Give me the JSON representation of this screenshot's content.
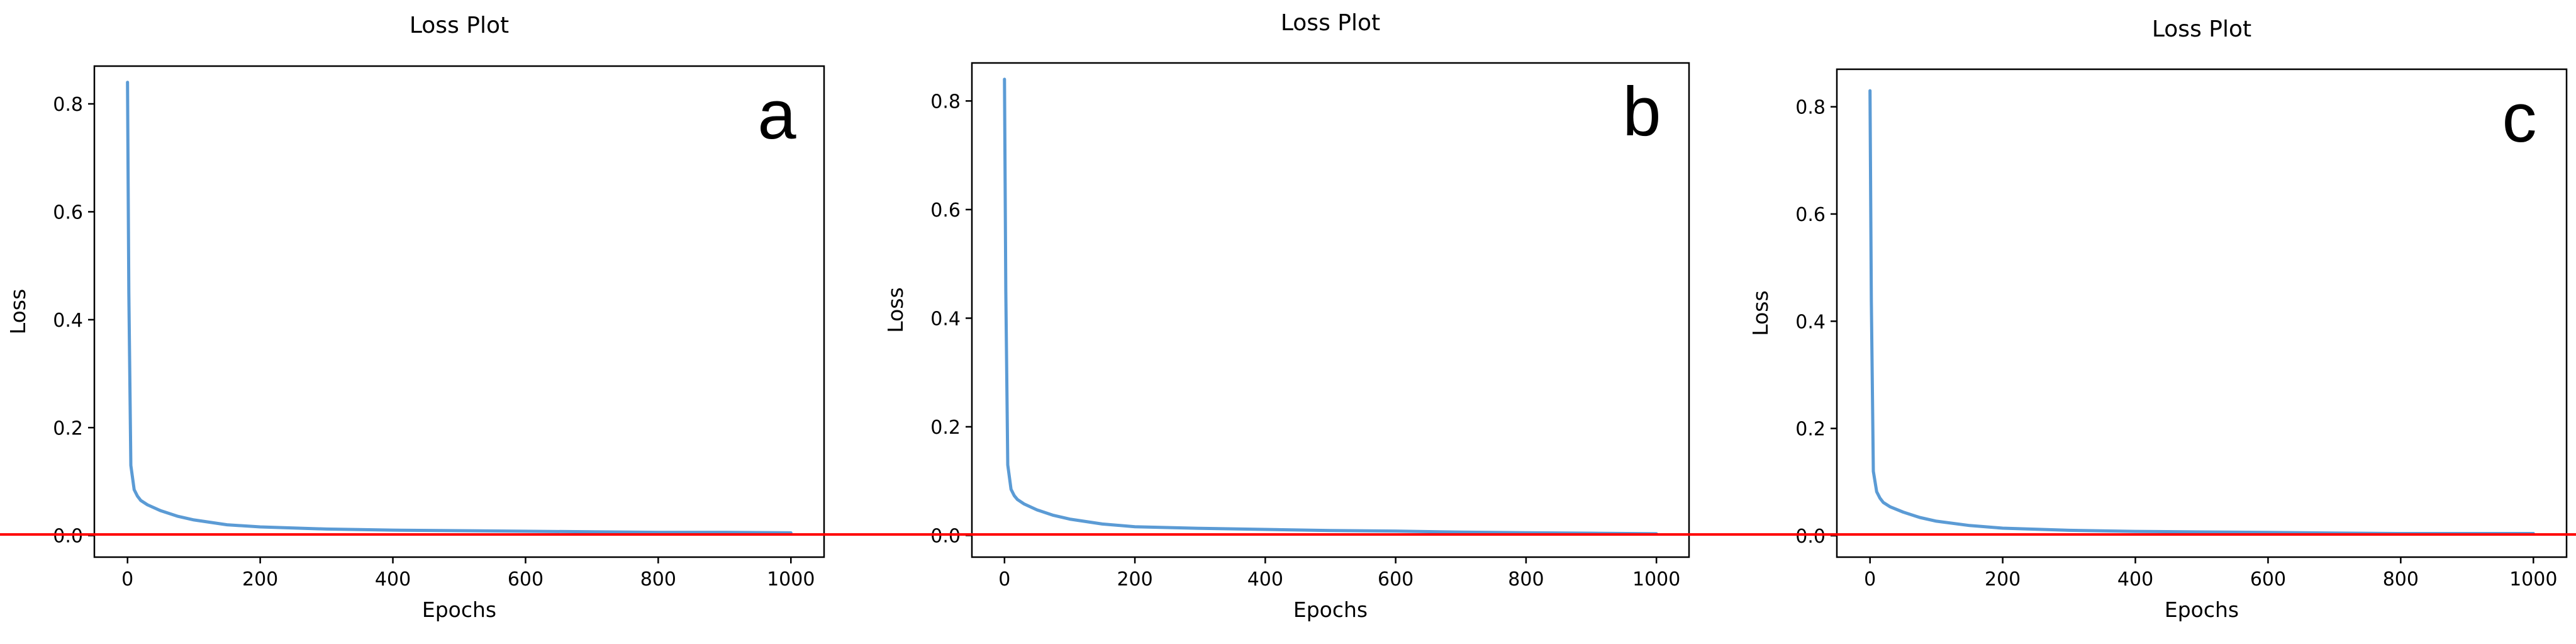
{
  "colors": {
    "line": "#5b9bd5",
    "reference_line": "#ff0000",
    "axes": "#000000",
    "background": "#ffffff"
  },
  "chart_data": [
    {
      "type": "line",
      "panel_label": "a",
      "title": "Loss Plot",
      "xlabel": "Epochs",
      "ylabel": "Loss",
      "xlim": [
        -50,
        1050
      ],
      "ylim": [
        -0.04,
        0.87
      ],
      "x_ticks": [
        0,
        200,
        400,
        600,
        800,
        1000
      ],
      "x_tick_labels": [
        "0",
        "200",
        "400",
        "600",
        "800",
        "1000"
      ],
      "y_ticks": [
        0.0,
        0.2,
        0.4,
        0.6,
        0.8
      ],
      "y_tick_labels": [
        "0.0",
        "0.2",
        "0.4",
        "0.6",
        "0.8"
      ],
      "grid": false,
      "legend": "none",
      "x": [
        0,
        2,
        5,
        10,
        15,
        20,
        30,
        50,
        75,
        100,
        150,
        200,
        300,
        400,
        500,
        600,
        700,
        800,
        900,
        1000
      ],
      "y": [
        0.84,
        0.45,
        0.13,
        0.085,
        0.073,
        0.065,
        0.057,
        0.046,
        0.036,
        0.029,
        0.02,
        0.016,
        0.012,
        0.01,
        0.009,
        0.008,
        0.007,
        0.006,
        0.006,
        0.005
      ]
    },
    {
      "type": "line",
      "panel_label": "b",
      "title": "Loss Plot",
      "xlabel": "Epochs",
      "ylabel": "Loss",
      "xlim": [
        -50,
        1050
      ],
      "ylim": [
        -0.04,
        0.87
      ],
      "x_ticks": [
        0,
        200,
        400,
        600,
        800,
        1000
      ],
      "x_tick_labels": [
        "0",
        "200",
        "400",
        "600",
        "800",
        "1000"
      ],
      "y_ticks": [
        0.0,
        0.2,
        0.4,
        0.6,
        0.8
      ],
      "y_tick_labels": [
        "0.0",
        "0.2",
        "0.4",
        "0.6",
        "0.8"
      ],
      "grid": false,
      "legend": "none",
      "x": [
        0,
        2,
        5,
        10,
        15,
        20,
        30,
        50,
        75,
        100,
        150,
        200,
        300,
        400,
        500,
        600,
        700,
        800,
        900,
        1000
      ],
      "y": [
        0.84,
        0.45,
        0.13,
        0.085,
        0.073,
        0.066,
        0.058,
        0.047,
        0.037,
        0.03,
        0.021,
        0.016,
        0.013,
        0.011,
        0.009,
        0.008,
        0.006,
        0.005,
        0.004,
        0.003
      ]
    },
    {
      "type": "line",
      "panel_label": "c",
      "title": "Loss Plot",
      "xlabel": "Epochs",
      "ylabel": "Loss",
      "xlim": [
        -50,
        1050
      ],
      "ylim": [
        -0.04,
        0.87
      ],
      "x_ticks": [
        0,
        200,
        400,
        600,
        800,
        1000
      ],
      "x_tick_labels": [
        "0",
        "200",
        "400",
        "600",
        "800",
        "1000"
      ],
      "y_ticks": [
        0.0,
        0.2,
        0.4,
        0.6,
        0.8
      ],
      "y_tick_labels": [
        "0.0",
        "0.2",
        "0.4",
        "0.6",
        "0.8"
      ],
      "grid": false,
      "legend": "none",
      "x": [
        0,
        2,
        5,
        10,
        15,
        20,
        30,
        50,
        75,
        100,
        150,
        200,
        300,
        400,
        500,
        600,
        700,
        800,
        900,
        1000
      ],
      "y": [
        0.83,
        0.44,
        0.12,
        0.082,
        0.07,
        0.062,
        0.054,
        0.044,
        0.034,
        0.027,
        0.019,
        0.014,
        0.01,
        0.008,
        0.007,
        0.006,
        0.005,
        0.004,
        0.004,
        0.004
      ]
    }
  ]
}
